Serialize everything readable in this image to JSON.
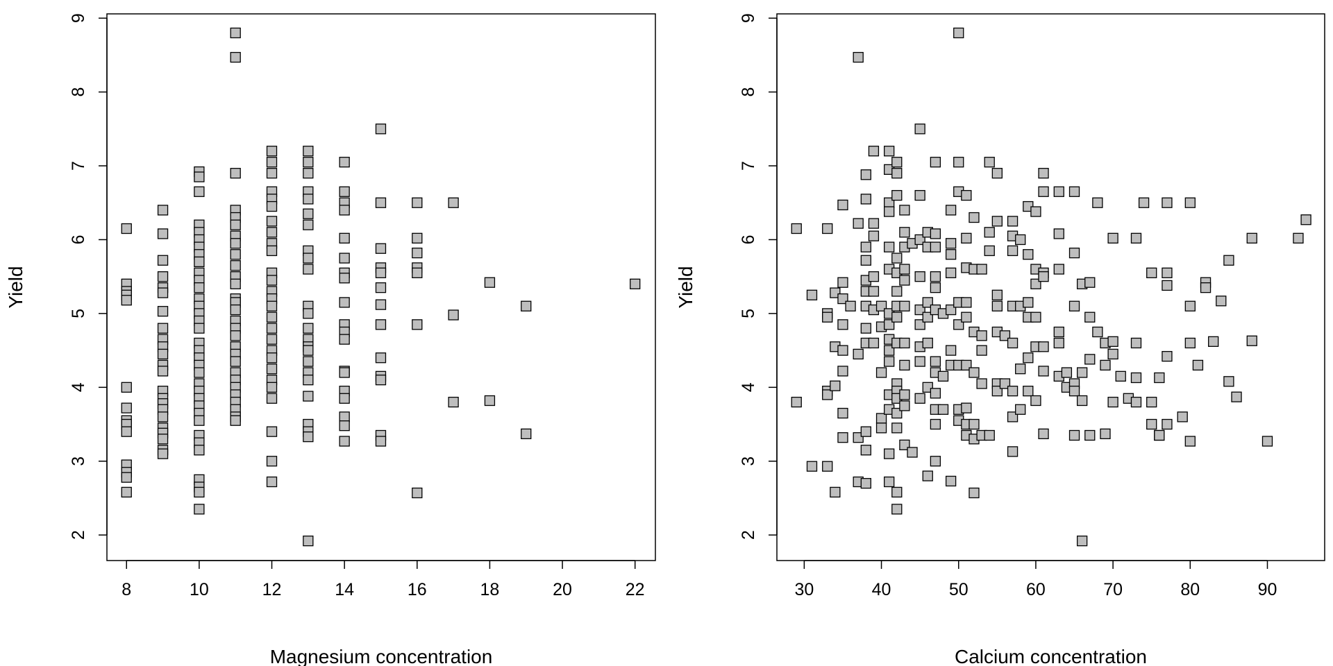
{
  "chart_data": [
    {
      "type": "scatter",
      "xlabel": "Magnesium concentration",
      "ylabel": "Yield",
      "color": "#bebebe",
      "xlim": [
        7.46,
        22.56
      ],
      "ylim": [
        1.654,
        9.058
      ],
      "xticks": [
        8,
        10,
        12,
        14,
        16,
        18,
        20,
        22
      ],
      "yticks": [
        2,
        3,
        4,
        5,
        6,
        7,
        8,
        9
      ],
      "x": [
        8,
        8,
        8,
        8,
        8,
        8,
        8,
        8,
        8,
        8,
        8,
        8,
        8,
        8,
        9,
        9,
        9,
        9,
        9,
        9,
        9,
        9,
        9,
        9,
        9,
        9,
        9,
        9,
        9,
        9,
        9,
        9,
        9,
        9,
        9,
        9,
        9,
        10,
        10,
        10,
        10,
        10,
        10,
        10,
        10,
        10,
        10,
        10,
        10,
        10,
        10,
        10,
        10,
        10,
        10,
        10,
        10,
        10,
        10,
        10,
        10,
        10,
        10,
        10,
        10,
        10,
        10,
        10,
        10,
        10,
        10,
        10,
        11,
        11,
        11,
        11,
        11,
        11,
        11,
        11,
        11,
        11,
        11,
        11,
        11,
        11,
        11,
        11,
        11,
        11,
        11,
        11,
        11,
        11,
        11,
        11,
        11,
        11,
        11,
        11,
        11,
        12,
        12,
        12,
        12,
        12,
        12,
        12,
        12,
        12,
        12,
        12,
        12,
        12,
        12,
        12,
        12,
        12,
        12,
        12,
        12,
        12,
        12,
        12,
        12,
        12,
        12,
        12,
        13,
        13,
        13,
        13,
        13,
        13,
        13,
        13,
        13,
        13,
        13,
        13,
        13,
        13,
        13,
        13,
        13,
        13,
        13,
        13,
        13,
        13,
        13,
        13,
        14,
        14,
        14,
        14,
        14,
        14,
        14,
        14,
        14,
        14,
        14,
        14,
        14,
        14,
        14,
        14,
        14,
        14,
        14,
        15,
        15,
        15,
        15,
        15,
        15,
        15,
        15,
        15,
        15,
        15,
        15,
        15,
        16,
        16,
        16,
        16,
        16,
        16,
        16,
        17,
        17,
        17,
        18,
        18,
        19,
        19,
        22
      ],
      "values": [
        6.15,
        5.4,
        5.3,
        5.25,
        5.18,
        4.0,
        3.72,
        3.55,
        3.5,
        3.4,
        2.95,
        2.85,
        2.78,
        2.58,
        6.4,
        6.08,
        5.72,
        5.5,
        5.35,
        5.28,
        5.03,
        4.8,
        4.65,
        4.55,
        4.45,
        4.3,
        4.22,
        3.95,
        3.85,
        3.78,
        3.7,
        3.6,
        3.45,
        3.38,
        3.3,
        3.15,
        3.1,
        6.92,
        6.85,
        6.65,
        6.2,
        6.1,
        6.0,
        5.9,
        5.8,
        5.7,
        5.55,
        5.45,
        5.35,
        5.2,
        5.1,
        5.0,
        4.9,
        4.8,
        4.6,
        4.5,
        4.4,
        4.3,
        4.2,
        4.05,
        3.95,
        3.85,
        3.75,
        3.65,
        3.55,
        3.35,
        3.25,
        3.15,
        2.75,
        2.65,
        2.58,
        2.35,
        8.8,
        8.47,
        6.9,
        6.4,
        6.3,
        6.2,
        6.05,
        5.95,
        5.8,
        5.65,
        5.5,
        5.4,
        5.2,
        5.15,
        5.05,
        4.9,
        4.8,
        4.7,
        4.55,
        4.45,
        4.35,
        4.2,
        4.1,
        4.0,
        3.9,
        3.8,
        3.7,
        3.6,
        3.55,
        7.2,
        7.05,
        6.9,
        6.65,
        6.55,
        6.45,
        6.25,
        6.1,
        5.95,
        5.85,
        5.55,
        5.45,
        5.3,
        5.2,
        5.1,
        4.95,
        4.8,
        4.65,
        4.5,
        4.4,
        4.25,
        4.1,
        4.0,
        3.85,
        3.4,
        3.0,
        2.72,
        7.2,
        7.05,
        6.9,
        6.65,
        6.55,
        6.35,
        6.2,
        5.85,
        5.75,
        5.6,
        5.1,
        5.0,
        4.8,
        4.65,
        4.55,
        4.5,
        4.35,
        4.2,
        4.1,
        3.88,
        3.5,
        3.4,
        3.33,
        1.92,
        7.05,
        6.65,
        6.5,
        6.4,
        6.02,
        5.75,
        5.55,
        5.48,
        5.15,
        4.85,
        4.75,
        4.65,
        4.22,
        4.2,
        3.95,
        3.85,
        3.6,
        3.48,
        3.27,
        7.5,
        6.5,
        5.88,
        5.62,
        5.55,
        5.35,
        5.12,
        4.85,
        4.4,
        4.15,
        4.1,
        3.35,
        3.27,
        6.5,
        6.02,
        5.82,
        5.62,
        5.55,
        4.85,
        2.57,
        6.5,
        4.98,
        3.8,
        5.42,
        3.82,
        5.1,
        3.37,
        5.4
      ]
    },
    {
      "type": "scatter",
      "xlabel": "Calcium concentration",
      "ylabel": "Yield",
      "color": "#bebebe",
      "xlim": [
        26.46,
        97.42
      ],
      "ylim": [
        1.654,
        9.058
      ],
      "xticks": [
        30,
        40,
        50,
        60,
        70,
        80,
        90
      ],
      "yticks": [
        2,
        3,
        4,
        5,
        6,
        7,
        8,
        9
      ],
      "x": [
        29,
        29,
        31,
        31,
        33,
        33,
        33,
        33,
        33,
        33,
        34,
        34,
        34,
        34,
        35,
        35,
        35,
        35,
        35,
        35,
        35,
        35,
        36,
        37,
        37,
        37,
        37,
        37,
        38,
        38,
        38,
        38,
        38,
        38,
        38,
        38,
        38,
        38,
        38,
        38,
        39,
        39,
        39,
        39,
        39,
        39,
        39,
        40,
        40,
        40,
        40,
        40,
        41,
        41,
        41,
        41,
        41,
        41,
        41,
        41,
        41,
        41,
        41,
        41,
        41,
        41,
        41,
        42,
        42,
        42,
        42,
        42,
        42,
        42,
        42,
        42,
        42,
        42,
        42,
        42,
        42,
        42,
        42,
        43,
        43,
        43,
        43,
        43,
        43,
        43,
        43,
        43,
        43,
        43,
        44,
        44,
        45,
        45,
        45,
        45,
        45,
        45,
        45,
        45,
        45,
        46,
        46,
        46,
        46,
        46,
        46,
        46,
        47,
        47,
        47,
        47,
        47,
        47,
        47,
        47,
        47,
        47,
        47,
        47,
        48,
        48,
        48,
        49,
        49,
        49,
        49,
        49,
        49,
        49,
        49,
        50,
        50,
        50,
        50,
        50,
        50,
        50,
        50,
        51,
        51,
        51,
        51,
        51,
        51,
        51,
        51,
        51,
        52,
        52,
        52,
        52,
        52,
        52,
        52,
        53,
        53,
        53,
        53,
        53,
        54,
        54,
        54,
        54,
        55,
        55,
        55,
        55,
        55,
        55,
        55,
        56,
        56,
        57,
        57,
        57,
        57,
        57,
        57,
        57,
        57,
        58,
        58,
        58,
        58,
        59,
        59,
        59,
        59,
        59,
        59,
        60,
        60,
        60,
        60,
        60,
        60,
        61,
        61,
        61,
        61,
        61,
        61,
        61,
        63,
        63,
        63,
        63,
        63,
        63,
        64,
        64,
        65,
        65,
        65,
        65,
        65,
        65,
        66,
        66,
        66,
        66,
        67,
        67,
        67,
        67,
        68,
        68,
        69,
        69,
        69,
        70,
        70,
        70,
        70,
        71,
        72,
        73,
        73,
        73,
        73,
        74,
        75,
        75,
        75,
        76,
        76,
        76,
        77,
        77,
        77,
        77,
        77,
        79,
        80,
        80,
        80,
        80,
        81,
        82,
        82,
        83,
        84,
        85,
        85,
        86,
        88,
        88,
        90,
        94,
        95
      ],
      "values": [
        6.15,
        3.8,
        2.93,
        5.25,
        6.15,
        5.0,
        4.95,
        3.95,
        3.9,
        2.93,
        5.28,
        4.55,
        4.02,
        2.58,
        6.47,
        5.42,
        5.2,
        4.85,
        4.5,
        4.22,
        3.65,
        3.32,
        5.1,
        8.47,
        6.22,
        4.45,
        3.32,
        2.72,
        6.88,
        6.55,
        5.9,
        5.72,
        5.45,
        5.3,
        5.1,
        4.8,
        4.6,
        3.4,
        3.15,
        2.7,
        7.2,
        6.22,
        6.05,
        5.5,
        5.3,
        5.05,
        4.6,
        5.1,
        4.82,
        4.2,
        3.58,
        3.45,
        7.2,
        6.95,
        6.5,
        6.38,
        5.9,
        5.6,
        5.0,
        4.85,
        4.65,
        4.5,
        4.35,
        3.9,
        3.7,
        3.1,
        2.72,
        7.05,
        6.9,
        6.6,
        5.75,
        5.55,
        5.3,
        5.1,
        4.95,
        4.6,
        4.05,
        3.95,
        3.85,
        3.65,
        3.45,
        2.58,
        2.35,
        6.4,
        6.1,
        5.9,
        5.6,
        5.45,
        5.1,
        4.6,
        4.3,
        3.9,
        3.75,
        3.22,
        5.95,
        3.12,
        7.5,
        6.6,
        6.0,
        5.5,
        5.05,
        4.85,
        4.55,
        4.35,
        3.85,
        6.1,
        5.9,
        5.15,
        4.95,
        4.6,
        4.0,
        2.8,
        7.05,
        6.08,
        5.9,
        5.5,
        5.35,
        5.05,
        4.35,
        4.2,
        3.92,
        3.7,
        3.5,
        3.0,
        5.0,
        4.15,
        3.7,
        6.4,
        5.95,
        5.8,
        5.55,
        5.05,
        4.5,
        4.3,
        2.73,
        8.8,
        7.05,
        6.65,
        5.15,
        4.85,
        4.3,
        3.7,
        3.55,
        6.6,
        6.02,
        5.62,
        5.15,
        4.95,
        4.3,
        3.72,
        3.5,
        3.35,
        6.3,
        5.6,
        4.75,
        4.2,
        3.5,
        3.3,
        2.57,
        5.6,
        4.7,
        4.5,
        4.05,
        3.35,
        7.05,
        6.1,
        5.85,
        3.35,
        6.9,
        6.25,
        5.25,
        5.1,
        4.75,
        4.05,
        3.95,
        4.7,
        4.05,
        6.25,
        6.05,
        5.85,
        5.1,
        4.6,
        3.95,
        3.6,
        3.13,
        6.0,
        5.1,
        4.25,
        3.7,
        6.45,
        5.8,
        5.15,
        4.95,
        4.4,
        3.95,
        6.38,
        5.6,
        5.4,
        4.95,
        4.55,
        3.82,
        6.9,
        6.65,
        5.55,
        5.5,
        4.55,
        4.22,
        3.37,
        6.65,
        6.08,
        5.6,
        4.75,
        4.6,
        4.15,
        4.2,
        4.0,
        6.65,
        5.82,
        5.1,
        4.05,
        3.95,
        3.35,
        5.4,
        4.2,
        3.82,
        1.92,
        5.42,
        4.95,
        4.38,
        3.35,
        6.5,
        4.75,
        4.6,
        4.3,
        3.37,
        6.02,
        4.62,
        4.45,
        3.8,
        4.15,
        3.85,
        6.02,
        4.6,
        4.13,
        3.8,
        6.5,
        5.55,
        3.8,
        3.5,
        4.13,
        3.35,
        3.35,
        6.5,
        5.55,
        5.38,
        4.42,
        3.5,
        3.6,
        6.5,
        5.1,
        4.6,
        3.27,
        4.3,
        5.42,
        5.35,
        4.62,
        5.17,
        5.72,
        4.08,
        3.87,
        6.02,
        4.63,
        3.27,
        6.02,
        6.27
      ]
    }
  ]
}
